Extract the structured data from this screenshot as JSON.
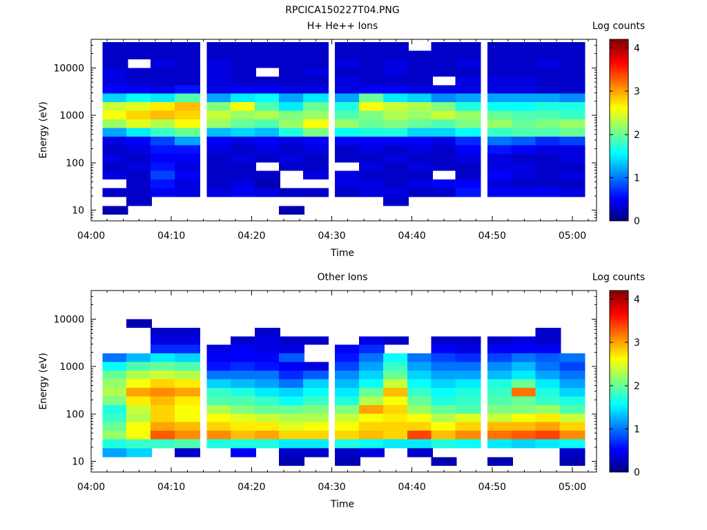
{
  "figure_title": "RPCICA150227T04.PNG",
  "chart_data": [
    {
      "type": "heatmap",
      "title": "H+ He++ Ions",
      "xlabel": "Time",
      "ylabel": "Energy (eV)",
      "x_ticks": [
        "04:00",
        "04:10",
        "04:20",
        "04:30",
        "04:40",
        "04:50",
        "05:00"
      ],
      "y_ticks": [
        "10",
        "100",
        "1000",
        "10000"
      ],
      "y_scale": "log",
      "ylim": [
        6,
        40000
      ],
      "colorbar_label": "Log counts",
      "colorbar_ticks": [
        "0",
        "1",
        "2",
        "3",
        "4"
      ],
      "zlim": [
        0,
        4.2
      ],
      "time_columns": [
        "04:03",
        "04:06",
        "04:09",
        "04:12",
        "04:16",
        "04:19",
        "04:22",
        "04:25",
        "04:28",
        "04:32",
        "04:35",
        "04:38",
        "04:41",
        "04:44",
        "04:47",
        "04:51",
        "04:54",
        "04:57",
        "05:00"
      ],
      "energy_bins_eV": [
        10,
        15,
        24,
        36,
        55,
        83,
        126,
        190,
        290,
        440,
        670,
        1010,
        1540,
        2330,
        3530,
        5350,
        8100,
        12300,
        18600,
        28200
      ],
      "log_counts": [
        [
          0.2,
          null,
          null,
          null,
          null,
          null,
          null,
          0.2,
          null,
          null,
          null,
          null,
          null,
          null,
          null,
          null,
          null,
          null,
          null
        ],
        [
          null,
          0.3,
          null,
          null,
          null,
          null,
          null,
          null,
          null,
          null,
          null,
          0.3,
          null,
          null,
          null,
          null,
          null,
          null,
          null
        ],
        [
          0.3,
          0.3,
          0.5,
          0.4,
          0.4,
          0.5,
          0.4,
          0.3,
          0.3,
          0.3,
          0.4,
          0.4,
          0.3,
          0.3,
          0.6,
          0.5,
          0.5,
          0.5,
          0.4
        ],
        [
          null,
          0.3,
          0.6,
          0.4,
          0.3,
          0.4,
          0.2,
          null,
          null,
          0.4,
          0.4,
          0.3,
          0.4,
          0.5,
          0.5,
          0.4,
          0.3,
          0.3,
          0.3
        ],
        [
          0.4,
          0.3,
          0.8,
          0.5,
          0.3,
          0.3,
          0.3,
          null,
          0.4,
          0.4,
          0.3,
          0.3,
          0.3,
          null,
          0.3,
          0.5,
          0.4,
          0.3,
          0.4
        ],
        [
          0.3,
          0.4,
          0.6,
          0.4,
          0.3,
          0.3,
          null,
          0.3,
          0.3,
          null,
          0.4,
          0.3,
          0.4,
          0.3,
          0.3,
          0.4,
          0.4,
          0.3,
          0.3
        ],
        [
          0.4,
          0.3,
          0.5,
          0.5,
          0.3,
          0.4,
          0.3,
          0.4,
          0.3,
          0.3,
          0.3,
          0.4,
          0.3,
          0.3,
          0.4,
          0.4,
          0.3,
          0.3,
          0.4
        ],
        [
          0.3,
          0.4,
          0.6,
          0.6,
          0.4,
          0.3,
          0.4,
          0.3,
          0.4,
          0.3,
          0.4,
          0.3,
          0.4,
          0.3,
          0.5,
          0.6,
          0.5,
          0.4,
          0.4
        ],
        [
          0.4,
          0.5,
          0.8,
          1.2,
          0.5,
          0.4,
          0.5,
          0.4,
          0.5,
          0.5,
          0.5,
          0.5,
          0.5,
          0.4,
          0.7,
          1.0,
          0.9,
          0.7,
          0.8
        ],
        [
          1.2,
          1.5,
          1.8,
          2.0,
          1.3,
          1.4,
          1.3,
          1.7,
          2.1,
          1.6,
          1.7,
          1.7,
          1.4,
          1.4,
          1.6,
          1.8,
          1.9,
          1.9,
          2.0
        ],
        [
          2.2,
          2.5,
          2.3,
          2.6,
          2.2,
          2.0,
          1.9,
          2.2,
          2.6,
          2.2,
          2.0,
          2.1,
          2.0,
          1.9,
          2.1,
          2.2,
          2.0,
          2.1,
          2.2
        ],
        [
          2.6,
          2.8,
          2.9,
          2.8,
          2.4,
          2.2,
          2.3,
          2.1,
          2.2,
          1.9,
          2.1,
          2.3,
          2.2,
          2.4,
          2.2,
          2.0,
          1.9,
          1.9,
          1.8
        ],
        [
          2.4,
          2.5,
          2.7,
          2.9,
          2.1,
          2.6,
          1.9,
          1.5,
          2.0,
          1.7,
          2.6,
          2.4,
          2.3,
          2.1,
          1.7,
          1.6,
          1.6,
          1.7,
          1.7
        ],
        [
          1.4,
          1.6,
          1.5,
          1.9,
          1.2,
          1.5,
          1.6,
          1.2,
          1.5,
          1.2,
          2.0,
          1.5,
          1.4,
          1.1,
          1.2,
          1.2,
          1.2,
          1.2,
          1.1
        ],
        [
          0.5,
          0.5,
          0.4,
          0.6,
          0.4,
          0.5,
          0.5,
          0.4,
          0.4,
          0.4,
          0.5,
          0.5,
          0.4,
          0.4,
          0.4,
          0.4,
          0.4,
          0.3,
          0.3
        ],
        [
          0.4,
          0.3,
          0.3,
          0.3,
          0.4,
          0.3,
          0.3,
          0.3,
          0.3,
          0.4,
          0.3,
          0.3,
          0.3,
          null,
          0.4,
          0.4,
          0.4,
          0.3,
          0.3
        ],
        [
          0.4,
          0.3,
          0.3,
          0.3,
          0.4,
          0.3,
          null,
          0.3,
          0.4,
          0.3,
          0.3,
          0.4,
          0.3,
          0.3,
          0.3,
          0.3,
          0.3,
          0.3,
          0.3
        ],
        [
          0.3,
          null,
          0.4,
          0.3,
          0.4,
          0.3,
          0.3,
          0.3,
          0.3,
          0.4,
          0.3,
          0.4,
          0.3,
          0.3,
          0.4,
          0.3,
          0.3,
          0.4,
          0.3
        ],
        [
          0.3,
          0.3,
          0.3,
          0.3,
          0.3,
          0.3,
          0.3,
          0.3,
          0.3,
          0.3,
          0.3,
          0.3,
          0.3,
          0.3,
          0.3,
          0.3,
          0.3,
          0.3,
          0.3
        ],
        [
          0.3,
          0.3,
          0.3,
          0.3,
          0.3,
          0.3,
          0.3,
          0.3,
          0.3,
          0.3,
          0.3,
          0.3,
          null,
          0.3,
          0.3,
          0.3,
          0.3,
          0.3,
          0.3
        ]
      ]
    },
    {
      "type": "heatmap",
      "title": "Other Ions",
      "xlabel": "Time",
      "ylabel": "Energy (eV)",
      "x_ticks": [
        "04:00",
        "04:10",
        "04:20",
        "04:30",
        "04:40",
        "04:50",
        "05:00"
      ],
      "y_ticks": [
        "10",
        "100",
        "1000",
        "10000"
      ],
      "y_scale": "log",
      "ylim": [
        6,
        40000
      ],
      "colorbar_label": "Log counts",
      "colorbar_ticks": [
        "0",
        "1",
        "2",
        "3",
        "4"
      ],
      "zlim": [
        0,
        4.2
      ],
      "time_columns": [
        "04:03",
        "04:06",
        "04:09",
        "04:12",
        "04:16",
        "04:19",
        "04:22",
        "04:25",
        "04:28",
        "04:32",
        "04:35",
        "04:38",
        "04:41",
        "04:44",
        "04:47",
        "04:51",
        "04:54",
        "04:57",
        "05:00"
      ],
      "energy_bins_eV": [
        10,
        15,
        24,
        36,
        55,
        83,
        126,
        190,
        290,
        440,
        670,
        1010,
        1540,
        2330,
        3530,
        5350,
        8100,
        12300,
        18600,
        28200
      ],
      "log_counts": [
        [
          null,
          null,
          null,
          null,
          null,
          null,
          null,
          0.2,
          null,
          0.2,
          null,
          null,
          null,
          0.2,
          null,
          0.2,
          null,
          null,
          0.2
        ],
        [
          1.2,
          1.4,
          null,
          0.3,
          null,
          0.5,
          null,
          0.3,
          0.3,
          0.3,
          0.4,
          null,
          0.3,
          null,
          null,
          null,
          null,
          null,
          0.3
        ],
        [
          1.7,
          1.8,
          1.8,
          1.9,
          1.7,
          1.7,
          1.7,
          1.5,
          1.5,
          1.7,
          1.6,
          1.5,
          1.5,
          1.7,
          1.6,
          1.5,
          1.4,
          1.5,
          1.6
        ],
        [
          2.2,
          2.6,
          3.3,
          3.1,
          3.1,
          2.9,
          3.0,
          2.8,
          2.8,
          2.8,
          2.9,
          2.8,
          3.4,
          2.9,
          3.1,
          3.2,
          3.3,
          3.4,
          3.1
        ],
        [
          2.0,
          2.6,
          3.0,
          2.9,
          2.8,
          2.7,
          2.7,
          2.5,
          2.6,
          2.6,
          2.8,
          2.8,
          2.8,
          2.6,
          2.8,
          2.9,
          2.9,
          3.0,
          2.8
        ],
        [
          1.8,
          2.3,
          2.8,
          2.6,
          2.6,
          2.5,
          2.4,
          2.3,
          2.3,
          2.4,
          2.6,
          2.7,
          2.6,
          2.3,
          2.5,
          2.4,
          2.6,
          2.7,
          2.4
        ],
        [
          1.7,
          2.4,
          2.8,
          2.6,
          2.3,
          2.1,
          2.0,
          2.0,
          2.1,
          2.1,
          3.0,
          2.8,
          2.2,
          2.0,
          1.9,
          2.1,
          2.1,
          2.2,
          1.9
        ],
        [
          2.1,
          2.7,
          2.9,
          2.7,
          1.9,
          1.9,
          1.8,
          1.6,
          1.8,
          1.7,
          2.3,
          2.6,
          2.0,
          1.7,
          1.8,
          1.9,
          2.0,
          1.8,
          1.7
        ],
        [
          2.3,
          3.0,
          3.1,
          3.0,
          1.8,
          1.7,
          1.5,
          1.4,
          1.6,
          1.5,
          2.0,
          2.9,
          1.8,
          1.6,
          1.7,
          1.8,
          3.2,
          1.7,
          1.4
        ],
        [
          2.2,
          2.6,
          2.8,
          2.7,
          1.4,
          1.3,
          1.2,
          1.0,
          1.4,
          1.3,
          1.6,
          2.4,
          1.6,
          1.4,
          1.5,
          1.7,
          2.0,
          1.5,
          1.2
        ],
        [
          2.0,
          2.3,
          2.4,
          2.3,
          1.0,
          1.0,
          1.0,
          0.7,
          0.9,
          1.1,
          1.4,
          2.0,
          1.4,
          1.2,
          1.2,
          1.3,
          1.5,
          1.2,
          1.0
        ],
        [
          1.6,
          1.9,
          2.0,
          1.9,
          0.6,
          0.7,
          0.6,
          0.5,
          0.4,
          0.8,
          1.2,
          1.8,
          1.2,
          1.0,
          1.0,
          1.1,
          1.3,
          1.0,
          0.8
        ],
        [
          1.0,
          1.3,
          1.5,
          1.4,
          0.5,
          0.5,
          0.5,
          0.9,
          null,
          0.6,
          1.0,
          1.6,
          1.0,
          0.8,
          0.7,
          0.8,
          1.0,
          0.9,
          1.0
        ],
        [
          null,
          null,
          0.7,
          0.7,
          0.4,
          0.5,
          0.4,
          0.4,
          null,
          0.5,
          0.7,
          null,
          null,
          0.5,
          0.4,
          0.5,
          0.5,
          0.5,
          null
        ],
        [
          null,
          null,
          0.4,
          0.4,
          null,
          0.3,
          0.4,
          0.3,
          0.3,
          null,
          0.4,
          0.3,
          null,
          0.3,
          0.3,
          0.3,
          0.4,
          0.3,
          null
        ],
        [
          null,
          null,
          0.3,
          0.3,
          null,
          null,
          0.3,
          null,
          null,
          null,
          null,
          null,
          null,
          null,
          null,
          null,
          null,
          0.3,
          null
        ],
        [
          null,
          0.2,
          null,
          null,
          null,
          null,
          null,
          null,
          null,
          null,
          null,
          null,
          null,
          null,
          null,
          null,
          null,
          null,
          null
        ],
        [
          null,
          null,
          null,
          null,
          null,
          null,
          null,
          null,
          null,
          null,
          null,
          null,
          null,
          null,
          null,
          null,
          null,
          null,
          null
        ],
        [
          null,
          null,
          null,
          null,
          null,
          null,
          null,
          null,
          null,
          null,
          null,
          null,
          null,
          null,
          null,
          null,
          null,
          null,
          null
        ],
        [
          null,
          null,
          null,
          null,
          null,
          null,
          null,
          null,
          null,
          null,
          null,
          null,
          null,
          null,
          null,
          null,
          null,
          null,
          null
        ]
      ]
    }
  ]
}
